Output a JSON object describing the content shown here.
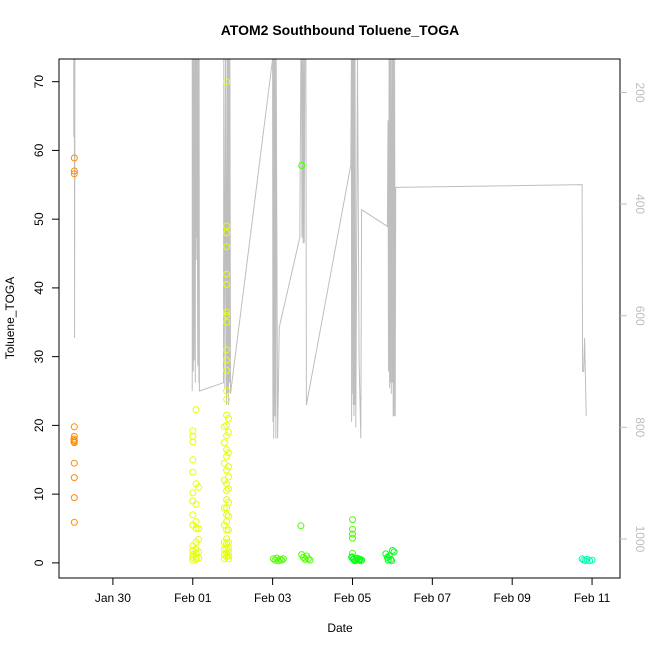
{
  "chart_data": {
    "type": "scatter",
    "title": "ATOM2 Southbound Toluene_TOGA",
    "xlabel": "Date",
    "ylabel": "Toluene_TOGA",
    "xlim": [
      "2017-01-28T15:36",
      "2017-02-11T16:48"
    ],
    "ylim": [
      -2.2,
      73.3
    ],
    "y2lim": [
      1070,
      140
    ],
    "x_ticks": [
      {
        "label": "Jan 30",
        "date": "2017-01-30"
      },
      {
        "label": "Feb 01",
        "date": "2017-02-01"
      },
      {
        "label": "Feb 03",
        "date": "2017-02-03"
      },
      {
        "label": "Feb 05",
        "date": "2017-02-05"
      },
      {
        "label": "Feb 07",
        "date": "2017-02-07"
      },
      {
        "label": "Feb 09",
        "date": "2017-02-09"
      },
      {
        "label": "Feb 11",
        "date": "2017-02-11"
      }
    ],
    "y_ticks": [
      0,
      10,
      20,
      30,
      40,
      50,
      60,
      70
    ],
    "y2_ticks": [
      200,
      400,
      600,
      800,
      1000
    ],
    "y2_color": "#bebebe",
    "grid": false,
    "legend": "none",
    "series": [
      {
        "color": "#ff8c00",
        "points": [
          [
            "2017-01-29T00:48",
            58.9
          ],
          [
            "2017-01-29T00:48",
            57.0
          ],
          [
            "2017-01-29T00:48",
            56.6
          ],
          [
            "2017-01-29T00:48",
            19.8
          ],
          [
            "2017-01-29T00:48",
            18.4
          ],
          [
            "2017-01-29T00:48",
            17.8
          ],
          [
            "2017-01-29T00:48",
            17.5
          ],
          [
            "2017-01-29T00:48",
            14.5
          ],
          [
            "2017-01-29T00:48",
            12.4
          ],
          [
            "2017-01-29T00:48",
            9.5
          ],
          [
            "2017-01-29T00:48",
            5.9
          ],
          [
            "2017-01-29T00:36",
            18.0
          ],
          [
            "2017-01-29T00:36",
            17.6
          ]
        ]
      },
      {
        "color": "#e6ff00",
        "points": [
          [
            "2017-02-01T00:00",
            19.2
          ],
          [
            "2017-02-01T00:00",
            18.4
          ],
          [
            "2017-02-01T00:00",
            17.6
          ],
          [
            "2017-02-01T00:00",
            15.0
          ],
          [
            "2017-02-01T00:00",
            13.2
          ],
          [
            "2017-02-01T00:00",
            10.2
          ],
          [
            "2017-02-01T00:00",
            9.0
          ],
          [
            "2017-02-01T00:00",
            7.0
          ],
          [
            "2017-02-01T00:00",
            5.5
          ],
          [
            "2017-02-01T00:00",
            2.5
          ],
          [
            "2017-02-01T00:00",
            1.8
          ],
          [
            "2017-02-01T00:00",
            1.2
          ],
          [
            "2017-02-01T00:00",
            0.8
          ],
          [
            "2017-02-01T00:00",
            0.4
          ],
          [
            "2017-02-01T02:00",
            22.3
          ],
          [
            "2017-02-01T02:00",
            11.5
          ],
          [
            "2017-02-01T02:00",
            8.5
          ],
          [
            "2017-02-01T02:00",
            6.0
          ],
          [
            "2017-02-01T02:00",
            5.0
          ],
          [
            "2017-02-01T02:00",
            3.0
          ],
          [
            "2017-02-01T02:00",
            2.0
          ],
          [
            "2017-02-01T02:00",
            1.4
          ],
          [
            "2017-02-01T02:00",
            0.9
          ],
          [
            "2017-02-01T02:00",
            0.5
          ],
          [
            "2017-02-01T03:30",
            11.0
          ],
          [
            "2017-02-01T03:30",
            5.0
          ],
          [
            "2017-02-01T03:30",
            3.4
          ],
          [
            "2017-02-01T03:30",
            1.6
          ],
          [
            "2017-02-01T03:30",
            0.7
          ],
          [
            "2017-02-01T19:00",
            19.8
          ],
          [
            "2017-02-01T19:00",
            17.5
          ],
          [
            "2017-02-01T19:00",
            14.5
          ],
          [
            "2017-02-01T19:00",
            12.0
          ],
          [
            "2017-02-01T19:00",
            8.0
          ],
          [
            "2017-02-01T19:00",
            5.5
          ],
          [
            "2017-02-01T19:00",
            3.0
          ],
          [
            "2017-02-01T19:00",
            2.0
          ],
          [
            "2017-02-01T19:00",
            1.2
          ],
          [
            "2017-02-01T19:00",
            0.6
          ],
          [
            "2017-02-01T20:20",
            70.0
          ],
          [
            "2017-02-01T20:20",
            49.0
          ],
          [
            "2017-02-01T20:20",
            48.0
          ],
          [
            "2017-02-01T20:20",
            46.0
          ],
          [
            "2017-02-01T20:20",
            42.0
          ],
          [
            "2017-02-01T20:20",
            40.5
          ],
          [
            "2017-02-01T20:20",
            36.5
          ],
          [
            "2017-02-01T20:20",
            36.0
          ],
          [
            "2017-02-01T20:20",
            35.0
          ],
          [
            "2017-02-01T20:20",
            31.0
          ],
          [
            "2017-02-01T20:20",
            29.5
          ],
          [
            "2017-02-01T20:20",
            28.0
          ],
          [
            "2017-02-01T20:20",
            25.0
          ],
          [
            "2017-02-01T20:20",
            23.8
          ],
          [
            "2017-02-01T20:20",
            21.5
          ],
          [
            "2017-02-01T20:20",
            20.0
          ],
          [
            "2017-02-01T20:20",
            18.5
          ],
          [
            "2017-02-01T20:20",
            16.5
          ],
          [
            "2017-02-01T20:20",
            15.5
          ],
          [
            "2017-02-01T20:20",
            13.5
          ],
          [
            "2017-02-01T20:20",
            11.5
          ],
          [
            "2017-02-01T20:20",
            10.5
          ],
          [
            "2017-02-01T20:20",
            9.2
          ],
          [
            "2017-02-01T20:20",
            8.0
          ],
          [
            "2017-02-01T20:20",
            7.0
          ],
          [
            "2017-02-01T20:20",
            6.0
          ],
          [
            "2017-02-01T20:20",
            4.8
          ],
          [
            "2017-02-01T20:20",
            3.5
          ],
          [
            "2017-02-01T20:20",
            2.8
          ],
          [
            "2017-02-01T20:20",
            2.0
          ],
          [
            "2017-02-01T20:20",
            1.4
          ],
          [
            "2017-02-01T20:20",
            0.9
          ],
          [
            "2017-02-01T21:30",
            21.0
          ],
          [
            "2017-02-01T21:30",
            19.0
          ],
          [
            "2017-02-01T21:30",
            16.0
          ],
          [
            "2017-02-01T21:30",
            14.0
          ],
          [
            "2017-02-01T21:30",
            12.5
          ],
          [
            "2017-02-01T21:30",
            10.8
          ],
          [
            "2017-02-01T21:30",
            8.8
          ],
          [
            "2017-02-01T21:30",
            6.8
          ],
          [
            "2017-02-01T21:30",
            4.8
          ],
          [
            "2017-02-01T21:30",
            3.0
          ],
          [
            "2017-02-01T21:30",
            2.2
          ],
          [
            "2017-02-01T21:30",
            1.6
          ],
          [
            "2017-02-01T21:30",
            1.0
          ],
          [
            "2017-02-01T21:30",
            0.6
          ]
        ]
      },
      {
        "color": "#4dff00",
        "points": [
          [
            "2017-02-03T00:30",
            0.6
          ],
          [
            "2017-02-03T01:30",
            0.4
          ],
          [
            "2017-02-03T02:30",
            0.7
          ],
          [
            "2017-02-03T03:30",
            0.3
          ],
          [
            "2017-02-03T04:30",
            0.5
          ],
          [
            "2017-02-03T05:30",
            0.4
          ],
          [
            "2017-02-03T06:30",
            0.6
          ],
          [
            "2017-02-03T17:30",
            57.8
          ],
          [
            "2017-02-03T17:00",
            5.4
          ],
          [
            "2017-02-03T17:30",
            1.2
          ],
          [
            "2017-02-03T18:30",
            0.8
          ],
          [
            "2017-02-03T19:30",
            0.5
          ],
          [
            "2017-02-03T20:30",
            1.0
          ],
          [
            "2017-02-03T21:30",
            0.6
          ],
          [
            "2017-02-03T22:30",
            0.4
          ],
          [
            "2017-02-05T00:00",
            6.3
          ],
          [
            "2017-02-05T00:00",
            4.9
          ],
          [
            "2017-02-05T00:00",
            4.2
          ],
          [
            "2017-02-05T00:00",
            3.6
          ],
          [
            "2017-02-05T00:00",
            1.4
          ],
          [
            "2017-02-05T00:00",
            0.9
          ],
          [
            "2017-02-05T01:00",
            0.6
          ],
          [
            "2017-02-05T02:00",
            0.4
          ],
          [
            "2017-02-05T03:00",
            0.7
          ],
          [
            "2017-02-05T04:00",
            0.5
          ],
          [
            "2017-02-05T05:00",
            0.3
          ]
        ]
      },
      {
        "color": "#00ff1a",
        "points": [
          [
            "2017-02-04T23:30",
            0.8
          ],
          [
            "2017-02-05T00:30",
            0.5
          ],
          [
            "2017-02-05T01:30",
            0.3
          ],
          [
            "2017-02-05T02:30",
            0.6
          ],
          [
            "2017-02-05T03:30",
            0.4
          ],
          [
            "2017-02-05T04:30",
            0.5
          ],
          [
            "2017-02-05T05:30",
            0.4
          ],
          [
            "2017-02-05T20:00",
            1.3
          ],
          [
            "2017-02-05T21:00",
            0.8
          ],
          [
            "2017-02-05T22:00",
            1.0
          ],
          [
            "2017-02-05T23:00",
            0.5
          ],
          [
            "2017-02-06T00:00",
            1.8
          ],
          [
            "2017-02-06T01:00",
            1.6
          ],
          [
            "2017-02-05T21:30",
            0.4
          ],
          [
            "2017-02-05T23:30",
            0.3
          ]
        ]
      },
      {
        "color": "#00ffb3",
        "points": [
          [
            "2017-02-10T18:00",
            0.6
          ],
          [
            "2017-02-10T19:00",
            0.4
          ],
          [
            "2017-02-10T20:00",
            0.3
          ],
          [
            "2017-02-10T21:00",
            0.5
          ],
          [
            "2017-02-10T22:30",
            0.3
          ],
          [
            "2017-02-11T00:00",
            0.4
          ]
        ]
      }
    ],
    "pressure_line": {
      "color": "#bebebe",
      "points": [
        [
          "2017-01-29T00:30",
          140
        ],
        [
          "2017-01-29T00:30",
          280
        ],
        [
          "2017-01-29T00:40",
          140
        ],
        [
          "2017-01-29T00:50",
          140
        ],
        [
          "2017-01-29T01:00",
          640
        ],
        [
          "2017-01-29T01:10",
          140
        ],
        [
          "2017-01-31T23:40",
          140
        ],
        [
          "2017-01-31T23:40",
          735
        ],
        [
          "2017-02-01T00:10",
          140
        ],
        [
          "2017-02-01T00:20",
          700
        ],
        [
          "2017-02-01T00:30",
          140
        ],
        [
          "2017-02-01T00:50",
          680
        ],
        [
          "2017-02-01T01:10",
          140
        ],
        [
          "2017-02-01T01:30",
          720
        ],
        [
          "2017-02-01T01:40",
          140
        ],
        [
          "2017-02-01T02:00",
          500
        ],
        [
          "2017-02-01T02:10",
          140
        ],
        [
          "2017-02-01T02:20",
          460
        ],
        [
          "2017-02-01T02:30",
          140
        ],
        [
          "2017-02-01T03:00",
          690
        ],
        [
          "2017-02-01T03:10",
          140
        ],
        [
          "2017-02-01T03:30",
          140
        ],
        [
          "2017-02-01T03:40",
          720
        ],
        [
          "2017-02-01T03:50",
          140
        ],
        [
          "2017-02-01T04:00",
          735
        ],
        [
          "2017-02-01T18:30",
          720
        ],
        [
          "2017-02-01T18:40",
          140
        ],
        [
          "2017-02-01T19:20",
          730
        ],
        [
          "2017-02-01T19:40",
          140
        ],
        [
          "2017-02-01T20:20",
          760
        ],
        [
          "2017-02-01T20:40",
          140
        ],
        [
          "2017-02-01T21:00",
          740
        ],
        [
          "2017-02-01T21:10",
          140
        ],
        [
          "2017-02-01T21:30",
          760
        ],
        [
          "2017-02-01T21:40",
          140
        ],
        [
          "2017-02-01T22:00",
          720
        ],
        [
          "2017-02-01T22:20",
          140
        ],
        [
          "2017-02-01T22:40",
          740
        ],
        [
          "2017-02-03T00:00",
          140
        ],
        [
          "2017-02-03T00:10",
          790
        ],
        [
          "2017-02-03T00:20",
          140
        ],
        [
          "2017-02-03T00:40",
          820
        ],
        [
          "2017-02-03T01:00",
          140
        ],
        [
          "2017-02-03T01:20",
          780
        ],
        [
          "2017-02-03T01:30",
          140
        ],
        [
          "2017-02-03T02:00",
          820
        ],
        [
          "2017-02-03T02:10",
          140
        ],
        [
          "2017-02-03T03:00",
          820
        ],
        [
          "2017-02-03T04:00",
          620
        ],
        [
          "2017-02-03T16:20",
          460
        ],
        [
          "2017-02-03T17:00",
          140
        ],
        [
          "2017-02-03T17:20",
          140
        ],
        [
          "2017-02-03T17:40",
          460
        ],
        [
          "2017-02-03T18:00",
          140
        ],
        [
          "2017-02-03T18:20",
          470
        ],
        [
          "2017-02-03T18:40",
          140
        ],
        [
          "2017-02-03T19:00",
          470
        ],
        [
          "2017-02-03T19:20",
          140
        ],
        [
          "2017-02-03T20:00",
          140
        ],
        [
          "2017-02-03T20:20",
          760
        ],
        [
          "2017-02-04T23:00",
          330
        ],
        [
          "2017-02-04T23:20",
          140
        ],
        [
          "2017-02-04T23:30",
          790
        ],
        [
          "2017-02-04T23:50",
          140
        ],
        [
          "2017-02-05T00:10",
          740
        ],
        [
          "2017-02-05T00:20",
          140
        ],
        [
          "2017-02-05T00:30",
          760
        ],
        [
          "2017-02-05T00:40",
          140
        ],
        [
          "2017-02-05T00:50",
          780
        ],
        [
          "2017-02-05T01:00",
          140
        ],
        [
          "2017-02-05T01:20",
          760
        ],
        [
          "2017-02-05T01:30",
          140
        ],
        [
          "2017-02-05T02:00",
          800
        ],
        [
          "2017-02-05T03:00",
          140
        ],
        [
          "2017-02-05T04:00",
          680
        ],
        [
          "2017-02-05T05:00",
          820
        ],
        [
          "2017-02-05T05:30",
          410
        ],
        [
          "2017-02-05T21:00",
          440
        ],
        [
          "2017-02-05T21:20",
          250
        ],
        [
          "2017-02-05T21:40",
          700
        ],
        [
          "2017-02-05T22:00",
          140
        ],
        [
          "2017-02-05T22:20",
          730
        ],
        [
          "2017-02-05T22:30",
          140
        ],
        [
          "2017-02-05T22:50",
          720
        ],
        [
          "2017-02-05T23:00",
          140
        ],
        [
          "2017-02-05T23:20",
          740
        ],
        [
          "2017-02-05T23:40",
          140
        ],
        [
          "2017-02-06T00:00",
          720
        ],
        [
          "2017-02-06T00:10",
          140
        ],
        [
          "2017-02-06T00:30",
          780
        ],
        [
          "2017-02-06T00:40",
          140
        ],
        [
          "2017-02-06T01:00",
          780
        ],
        [
          "2017-02-06T01:20",
          140
        ],
        [
          "2017-02-06T01:40",
          780
        ],
        [
          "2017-02-06T02:00",
          370
        ],
        [
          "2017-02-10T18:00",
          365
        ],
        [
          "2017-02-10T18:20",
          700
        ],
        [
          "2017-02-10T19:00",
          700
        ],
        [
          "2017-02-10T19:30",
          640
        ],
        [
          "2017-02-10T20:30",
          780
        ]
      ]
    }
  }
}
